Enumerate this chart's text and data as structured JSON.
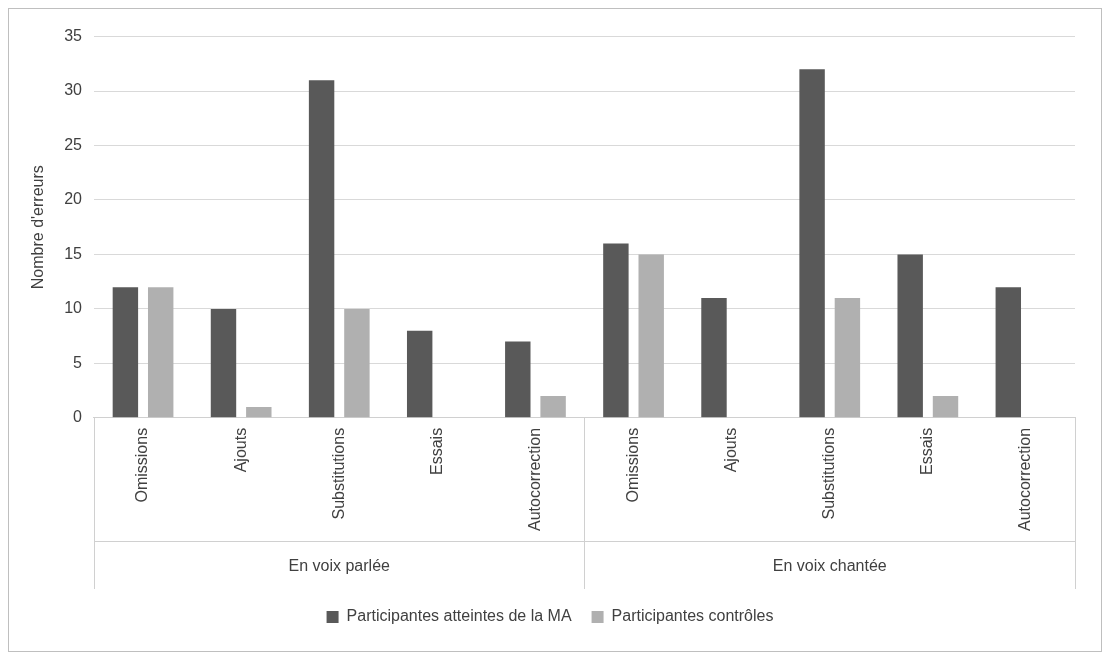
{
  "chart_data": {
    "type": "bar",
    "ylabel": "Nombre d'erreurs",
    "categories": [
      "Omissions",
      "Ajouts",
      "Substitutions",
      "Essais",
      "Autocorrection",
      "Omissions",
      "Ajouts",
      "Substitutions",
      "Essais",
      "Autocorrection"
    ],
    "series": [
      {
        "name": "Participantes atteintes de la MA",
        "color": "#595959",
        "values": [
          12,
          10,
          31,
          8,
          7,
          16,
          11,
          32,
          15,
          12
        ]
      },
      {
        "name": "Participantes contrôles",
        "color": "#b0b0b0",
        "values": [
          12,
          1,
          10,
          0,
          2,
          15,
          0,
          11,
          2,
          0
        ]
      }
    ],
    "annotations": [
      "En voix parlée",
      "En voix chantée"
    ],
    "ylim": [
      0,
      35
    ],
    "yticks": [
      0,
      5,
      10,
      15,
      20,
      25,
      30,
      35
    ],
    "grid": "y",
    "legend": "bottom"
  }
}
